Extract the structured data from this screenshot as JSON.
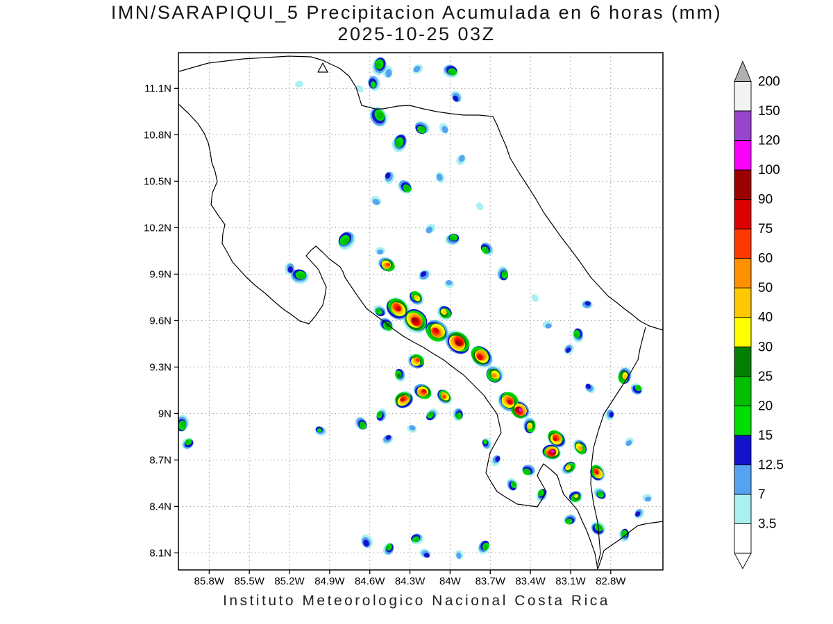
{
  "title": {
    "line1": "IMN/SARAPIQUI_5 Precipitacion Acumulada en 6 horas (mm)",
    "line2": "2025-10-25 03Z"
  },
  "footer": "Instituto Meteorologico Nacional Costa Rica",
  "chart_data": {
    "type": "heatmap",
    "subtype": "filled-contour precipitation map",
    "title": "IMN/SARAPIQUI_5 Precipitacion Acumulada en 6 horas (mm)",
    "valid_time": "2025-10-25 03Z",
    "units": "mm",
    "attribution": "Instituto Meteorologico Nacional Costa Rica",
    "grid": "dotted",
    "lon_range": [
      -86.03,
      -82.41
    ],
    "lat_range": [
      7.99,
      11.33
    ],
    "lon_ticks": [
      -85.8,
      -85.5,
      -85.2,
      -84.9,
      -84.6,
      -84.3,
      -84,
      -83.7,
      -83.4,
      -83.1,
      -82.8
    ],
    "x_tick_labels": [
      "85.8W",
      "85.5W",
      "85.2W",
      "84.9W",
      "84.6W",
      "84.3W",
      "84W",
      "83.7W",
      "83.4W",
      "83.1W",
      "82.8W"
    ],
    "lat_ticks": [
      11.1,
      10.8,
      10.5,
      10.2,
      9.9,
      9.6,
      9.3,
      9,
      8.7,
      8.4,
      8.1
    ],
    "y_tick_labels": [
      "11.1N",
      "10.8N",
      "10.5N",
      "10.2N",
      "9.9N",
      "9.6N",
      "9.3N",
      "9N",
      "8.7N",
      "8.4N",
      "8.1N"
    ],
    "colorbar": {
      "position": "right",
      "levels": [
        3.5,
        7,
        12.5,
        15,
        20,
        25,
        30,
        40,
        50,
        60,
        75,
        90,
        100,
        120,
        150,
        200
      ],
      "labels": [
        "3.5",
        "7",
        "12.5",
        "15",
        "20",
        "25",
        "30",
        "40",
        "50",
        "60",
        "75",
        "90",
        "100",
        "120",
        "150",
        "200"
      ],
      "interval_colors": [
        "#aaf0f0",
        "#55a3f0",
        "#1212cc",
        "#00dd00",
        "#00c000",
        "#007f00",
        "#ffff00",
        "#ffc800",
        "#ff9100",
        "#ff3800",
        "#dd0000",
        "#9d0000",
        "#fa00fa",
        "#9944cc",
        "#f2f2f2"
      ],
      "under_color": "#ffffff",
      "over_color": "#b0b0b0"
    },
    "cells_format": [
      "lon",
      "lat",
      "peak_mm",
      "radius_px",
      "rotation_deg_optional"
    ],
    "cells": [
      [
        -84.53,
        11.25,
        21,
        13,
        100
      ],
      [
        -84.57,
        11.13,
        18,
        11,
        80
      ],
      [
        -84.46,
        11.2,
        8,
        9
      ],
      [
        -84.25,
        11.23,
        8,
        8
      ],
      [
        -83.99,
        11.21,
        21,
        11,
        20
      ],
      [
        -83.96,
        11.04,
        13,
        9
      ],
      [
        -84.53,
        10.92,
        25,
        15,
        60
      ],
      [
        -84.38,
        10.75,
        22,
        13,
        110
      ],
      [
        -84.21,
        10.84,
        21,
        11,
        30
      ],
      [
        -84.04,
        10.84,
        8,
        8
      ],
      [
        -84.46,
        10.53,
        13,
        9
      ],
      [
        -84.33,
        10.46,
        21,
        11,
        45
      ],
      [
        -84.56,
        10.37,
        8,
        8
      ],
      [
        -84.07,
        10.53,
        8,
        8
      ],
      [
        -83.92,
        10.64,
        8,
        8
      ],
      [
        -85.13,
        11.12,
        5,
        6
      ],
      [
        -84.67,
        11.1,
        5,
        6
      ],
      [
        -84.78,
        10.12,
        22,
        14,
        130
      ],
      [
        -84.47,
        9.96,
        70,
        12,
        20
      ],
      [
        -84.53,
        10.05,
        8,
        7
      ],
      [
        -85.12,
        9.89,
        22,
        13,
        10
      ],
      [
        -85.2,
        9.93,
        13,
        9
      ],
      [
        -84.15,
        10.19,
        8,
        8
      ],
      [
        -83.98,
        10.13,
        21,
        10
      ],
      [
        -83.73,
        10.06,
        21,
        10
      ],
      [
        -83.6,
        9.9,
        21,
        10
      ],
      [
        -84.2,
        9.9,
        13,
        9
      ],
      [
        -84.0,
        9.84,
        8,
        7
      ],
      [
        -83.78,
        10.33,
        5,
        6
      ],
      [
        -84.39,
        9.68,
        80,
        18,
        40
      ],
      [
        -84.26,
        9.6,
        95,
        19,
        40
      ],
      [
        -84.1,
        9.53,
        80,
        18,
        40
      ],
      [
        -83.94,
        9.46,
        95,
        19,
        40
      ],
      [
        -83.77,
        9.37,
        80,
        17,
        40
      ],
      [
        -84.47,
        9.57,
        30,
        11,
        40
      ],
      [
        -84.53,
        9.66,
        22,
        9
      ],
      [
        -84.25,
        9.75,
        45,
        11,
        40
      ],
      [
        -84.04,
        9.65,
        45,
        11,
        40
      ],
      [
        -83.67,
        9.25,
        60,
        13,
        40
      ],
      [
        -84.25,
        9.34,
        65,
        12,
        30
      ],
      [
        -84.38,
        9.25,
        30,
        9
      ],
      [
        -84.2,
        9.14,
        80,
        13,
        20
      ],
      [
        -84.35,
        9.09,
        80,
        14,
        150
      ],
      [
        -84.04,
        9.11,
        65,
        11,
        40
      ],
      [
        -83.94,
        8.99,
        22,
        9
      ],
      [
        -84.14,
        8.99,
        22,
        9
      ],
      [
        -83.56,
        9.08,
        85,
        16,
        40
      ],
      [
        -83.48,
        9.02,
        105,
        14,
        40
      ],
      [
        -83.4,
        8.92,
        50,
        11
      ],
      [
        -83.21,
        8.84,
        80,
        14,
        40
      ],
      [
        -83.24,
        8.75,
        105,
        13,
        0
      ],
      [
        -83.03,
        8.78,
        55,
        11
      ],
      [
        -82.9,
        8.62,
        80,
        12,
        60
      ],
      [
        -83.11,
        8.65,
        45,
        10
      ],
      [
        -83.42,
        8.63,
        25,
        10
      ],
      [
        -83.53,
        8.54,
        21,
        9
      ],
      [
        -83.32,
        8.48,
        22,
        9
      ],
      [
        -83.06,
        8.46,
        35,
        10
      ],
      [
        -82.88,
        8.48,
        22,
        9
      ],
      [
        -83.73,
        8.81,
        18,
        8
      ],
      [
        -83.65,
        8.7,
        13,
        8
      ],
      [
        -82.7,
        9.24,
        45,
        12,
        90
      ],
      [
        -82.6,
        9.16,
        22,
        9
      ],
      [
        -83.05,
        9.51,
        22,
        10
      ],
      [
        -83.11,
        9.41,
        13,
        8
      ],
      [
        -83.27,
        9.57,
        8,
        7
      ],
      [
        -82.96,
        9.17,
        13,
        8
      ],
      [
        -82.8,
        8.99,
        13,
        8
      ],
      [
        -82.67,
        8.81,
        8,
        7
      ],
      [
        -82.97,
        9.71,
        13,
        8
      ],
      [
        -83.37,
        9.75,
        5,
        6
      ],
      [
        -86.0,
        8.93,
        25,
        12
      ],
      [
        -85.96,
        8.81,
        21,
        9
      ],
      [
        -84.97,
        8.89,
        18,
        8
      ],
      [
        -84.66,
        8.93,
        22,
        10
      ],
      [
        -84.52,
        8.99,
        22,
        9
      ],
      [
        -84.46,
        8.84,
        13,
        8
      ],
      [
        -84.29,
        8.9,
        8,
        7
      ],
      [
        -84.62,
        8.17,
        13,
        10
      ],
      [
        -84.46,
        8.13,
        21,
        9
      ],
      [
        -84.25,
        8.19,
        21,
        9
      ],
      [
        -84.18,
        8.09,
        13,
        8
      ],
      [
        -83.94,
        8.09,
        8,
        7
      ],
      [
        -83.74,
        8.14,
        21,
        10
      ],
      [
        -83.11,
        8.31,
        21,
        9
      ],
      [
        -82.89,
        8.26,
        22,
        11
      ],
      [
        -82.7,
        8.22,
        21,
        9
      ],
      [
        -82.59,
        8.35,
        13,
        8
      ],
      [
        -82.52,
        8.45,
        8,
        7
      ]
    ]
  }
}
